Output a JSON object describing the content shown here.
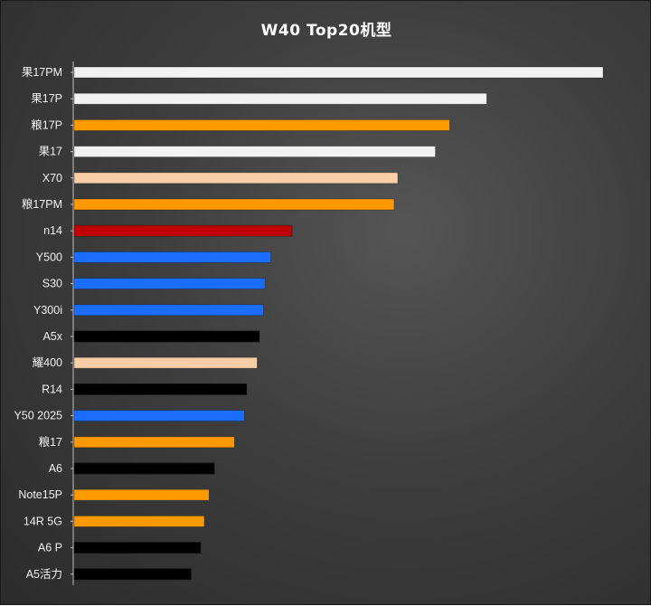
{
  "chart_data": {
    "type": "bar",
    "orientation": "horizontal",
    "title": "W40 Top20机型",
    "xlabel": "",
    "ylabel": "",
    "grid": false,
    "legend": "none",
    "xlim": [
      0,
      100
    ],
    "categories": [
      "果17PM",
      "果17P",
      "粮17P",
      "果17",
      "X70",
      "粮17PM",
      "n14",
      "Y500",
      "S30",
      "Y300i",
      "A5x",
      "耀400",
      "R14",
      "Y50 2025",
      "粮17",
      "A6",
      "Note15P",
      "14R 5G",
      "A6 P",
      "A5活力"
    ],
    "values": [
      100,
      78,
      71,
      68.3,
      61.2,
      60.5,
      41.2,
      37.2,
      36.1,
      35.8,
      35,
      34.6,
      32.6,
      32.2,
      30.3,
      26.5,
      25.5,
      24.6,
      23.9,
      22.1
    ],
    "colors": [
      "#f2f2f2",
      "#f2f2f2",
      "#ff9900",
      "#f2f2f2",
      "#f9cda6",
      "#ff9900",
      "#c00000",
      "#1a6dff",
      "#1a6dff",
      "#1a6dff",
      "#000000",
      "#f9cda6",
      "#000000",
      "#1a6dff",
      "#ff9900",
      "#000000",
      "#ff9900",
      "#ff9900",
      "#000000",
      "#000000"
    ]
  }
}
